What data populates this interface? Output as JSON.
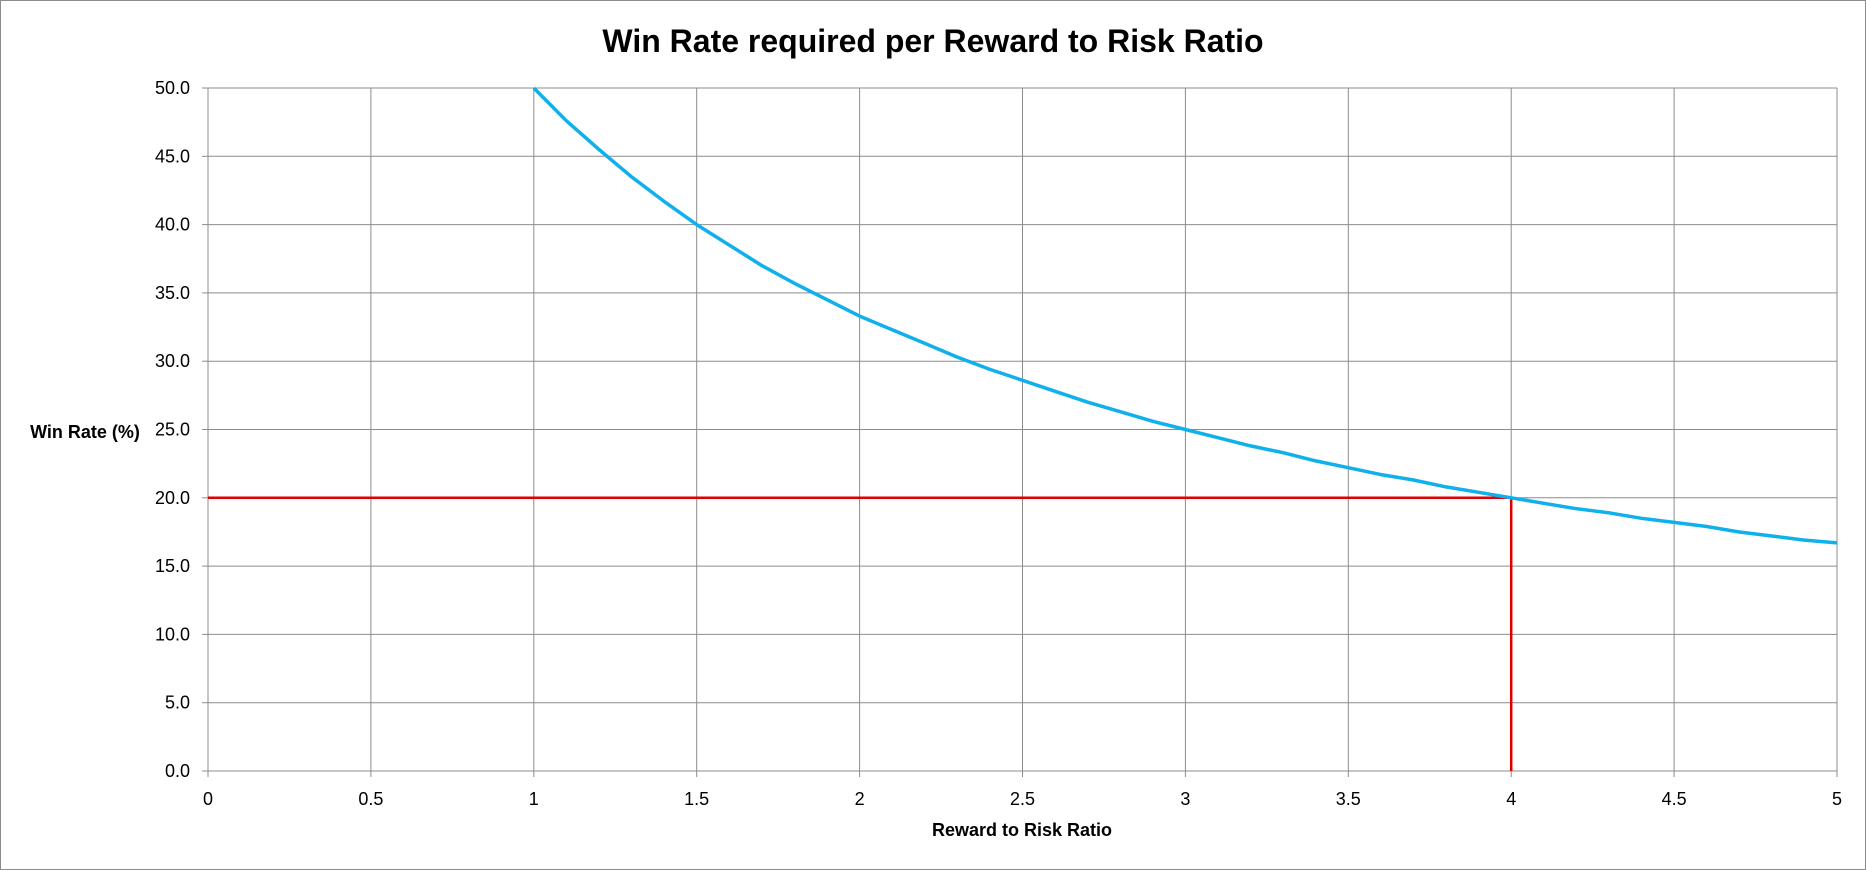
{
  "chart_data": {
    "type": "line",
    "title": "Win Rate required per Reward to Risk Ratio",
    "xlabel": "Reward to Risk Ratio",
    "ylabel": "Win Rate (%)",
    "xlim": [
      0,
      5
    ],
    "ylim": [
      0,
      50
    ],
    "x_ticks": [
      "0",
      "0.5",
      "1",
      "1.5",
      "2",
      "2.5",
      "3",
      "3.5",
      "4",
      "4.5",
      "5"
    ],
    "y_ticks": [
      "0.0",
      "5.0",
      "10.0",
      "15.0",
      "20.0",
      "25.0",
      "30.0",
      "35.0",
      "40.0",
      "45.0",
      "50.0"
    ],
    "grid": true,
    "legend": "none",
    "series": [
      {
        "color": "#0fb0ec",
        "x": [
          1,
          1.1,
          1.2,
          1.3,
          1.4,
          1.5,
          1.6,
          1.7,
          1.8,
          1.9,
          2,
          2.1,
          2.2,
          2.3,
          2.4,
          2.5,
          2.6,
          2.7,
          2.8,
          2.9,
          3,
          3.1,
          3.2,
          3.3,
          3.4,
          3.5,
          3.6,
          3.7,
          3.8,
          3.9,
          4,
          4.1,
          4.2,
          4.3,
          4.4,
          4.5,
          4.6,
          4.7,
          4.8,
          4.9,
          5
        ],
        "y": [
          50.0,
          47.6,
          45.5,
          43.5,
          41.7,
          40.0,
          38.5,
          37.0,
          35.7,
          34.5,
          33.3,
          32.3,
          31.3,
          30.3,
          29.4,
          28.6,
          27.8,
          27.0,
          26.3,
          25.6,
          25.0,
          24.4,
          23.8,
          23.3,
          22.7,
          22.2,
          21.7,
          21.3,
          20.8,
          20.4,
          20.0,
          19.6,
          19.2,
          18.9,
          18.5,
          18.2,
          17.9,
          17.5,
          17.2,
          16.9,
          16.7
        ]
      }
    ],
    "reference_lines": [
      {
        "color": "#e00000",
        "points": [
          [
            0,
            20
          ],
          [
            4,
            20
          ],
          [
            4,
            0
          ]
        ]
      }
    ]
  }
}
